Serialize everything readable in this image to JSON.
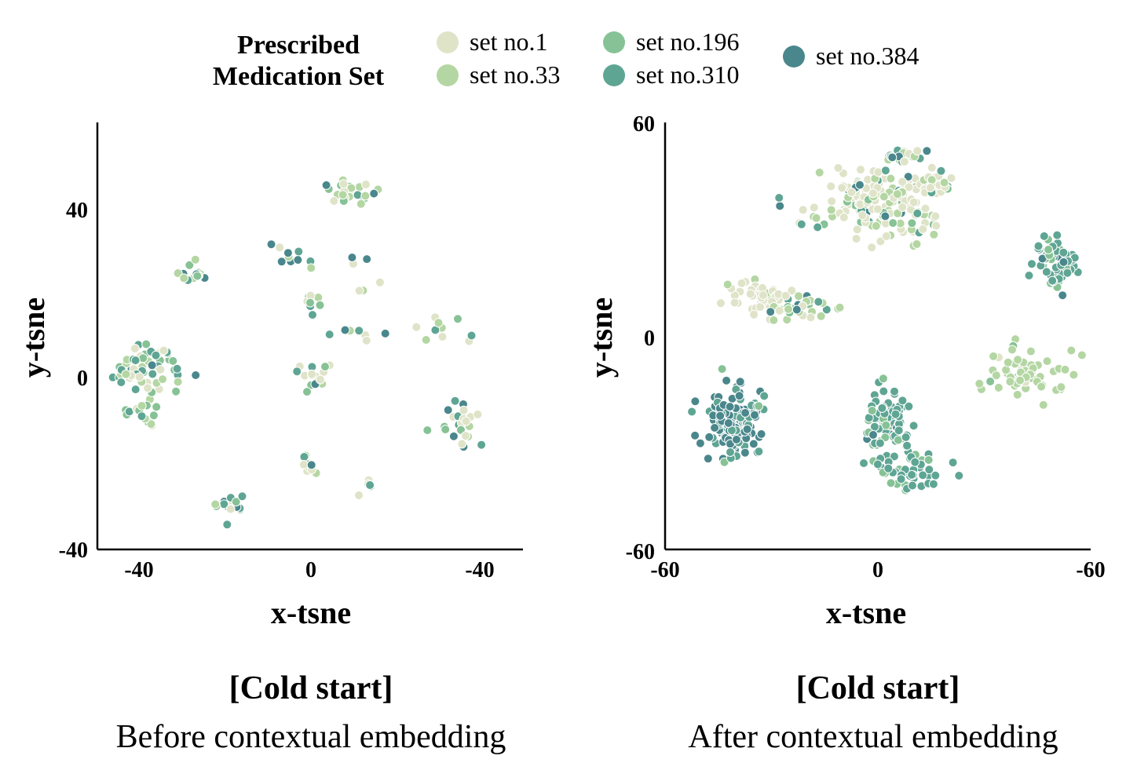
{
  "legend": {
    "title_line1": "Prescribed",
    "title_line2": "Medication Set",
    "items": [
      {
        "label": "set no.1",
        "color": "#dfe3c8"
      },
      {
        "label": "set no.33",
        "color": "#b4d6a3"
      },
      {
        "label": "set no.196",
        "color": "#86c295"
      },
      {
        "label": "set no.310",
        "color": "#5fa594"
      },
      {
        "label": "set no.384",
        "color": "#4a878c"
      }
    ]
  },
  "chart_data": [
    {
      "type": "scatter",
      "title": "[Cold start]",
      "subtitle": "Before contextual embedding",
      "xlabel": "x-tsne",
      "ylabel": "y-tsne",
      "x_ticks": [
        "-40",
        "0",
        "-40"
      ],
      "y_ticks": [
        "40",
        "0",
        "-40"
      ],
      "xlim": [
        -50,
        50
      ],
      "ylim": [
        -40,
        60
      ],
      "clusters": [
        {
          "x": -38,
          "y": 3,
          "spread": [
            4,
            3
          ],
          "n": 60,
          "mix": [
            0.3,
            0.2,
            0.2,
            0.2,
            0.1
          ]
        },
        {
          "x": -39,
          "y": -8,
          "spread": [
            2,
            2
          ],
          "n": 18,
          "mix": [
            0.2,
            0.4,
            0.3,
            0.1,
            0.0
          ]
        },
        {
          "x": -28,
          "y": 25,
          "spread": [
            2,
            1.2
          ],
          "n": 14,
          "mix": [
            0.4,
            0.3,
            0.1,
            0.1,
            0.1
          ]
        },
        {
          "x": 9,
          "y": 44,
          "spread": [
            3,
            2
          ],
          "n": 28,
          "mix": [
            0.3,
            0.3,
            0.2,
            0.1,
            0.1
          ]
        },
        {
          "x": 1,
          "y": 18,
          "spread": [
            1.5,
            1.5
          ],
          "n": 8,
          "mix": [
            0.2,
            0.3,
            0.2,
            0.3,
            0.0
          ]
        },
        {
          "x": 1,
          "y": 1,
          "spread": [
            2.5,
            2
          ],
          "n": 16,
          "mix": [
            0.4,
            0.1,
            0.1,
            0.2,
            0.2
          ]
        },
        {
          "x": 0,
          "y": -20,
          "spread": [
            1,
            1.5
          ],
          "n": 10,
          "mix": [
            0.5,
            0.2,
            0.1,
            0.1,
            0.1
          ]
        },
        {
          "x": -19,
          "y": -29,
          "spread": [
            2,
            2
          ],
          "n": 14,
          "mix": [
            0.2,
            0.2,
            0.2,
            0.3,
            0.1
          ]
        },
        {
          "x": 13,
          "y": -25,
          "spread": [
            1,
            1
          ],
          "n": 6,
          "mix": [
            0.5,
            0.2,
            0.0,
            0.3,
            0.0
          ]
        },
        {
          "x": 35,
          "y": -10,
          "spread": [
            3,
            2.5
          ],
          "n": 24,
          "mix": [
            0.2,
            0.1,
            0.2,
            0.3,
            0.2
          ]
        },
        {
          "x": 12,
          "y": 25,
          "spread": [
            2,
            2
          ],
          "n": 6,
          "mix": [
            0.3,
            0.1,
            0.0,
            0.2,
            0.4
          ]
        },
        {
          "x": -3,
          "y": 28,
          "spread": [
            3,
            2
          ],
          "n": 10,
          "mix": [
            0.2,
            0.1,
            0.1,
            0.2,
            0.4
          ]
        },
        {
          "x": 30,
          "y": 12,
          "spread": [
            3,
            2
          ],
          "n": 10,
          "mix": [
            0.5,
            0.1,
            0.2,
            0.2,
            0.0
          ]
        },
        {
          "x": 10,
          "y": 11,
          "spread": [
            3,
            2
          ],
          "n": 8,
          "mix": [
            0.3,
            0.3,
            0.0,
            0.2,
            0.2
          ]
        }
      ]
    },
    {
      "type": "scatter",
      "title": "[Cold start]",
      "subtitle": "After contextual embedding",
      "xlabel": "x-tsne",
      "ylabel": "y-tsne",
      "x_ticks": [
        "-60",
        "0",
        "-60"
      ],
      "y_ticks": [
        "60",
        "0",
        "-60"
      ],
      "xlim": [
        -60,
        60
      ],
      "ylim": [
        -60,
        60
      ],
      "clusters": [
        {
          "x": -40,
          "y": -25,
          "spread": [
            4,
            4.5
          ],
          "n": 130,
          "mix": [
            0.0,
            0.0,
            0.05,
            0.25,
            0.7
          ]
        },
        {
          "x": 3,
          "y": -24,
          "spread": [
            3.5,
            4
          ],
          "n": 90,
          "mix": [
            0.0,
            0.0,
            0.2,
            0.75,
            0.05
          ]
        },
        {
          "x": 7,
          "y": -38,
          "spread": [
            5,
            3.5
          ],
          "n": 50,
          "mix": [
            0.0,
            0.0,
            0.25,
            0.75,
            0.0
          ]
        },
        {
          "x": 42,
          "y": -11,
          "spread": [
            5,
            3.5
          ],
          "n": 60,
          "mix": [
            0.1,
            0.85,
            0.05,
            0.0,
            0.0
          ]
        },
        {
          "x": 50,
          "y": 21,
          "spread": [
            3,
            3.5
          ],
          "n": 70,
          "mix": [
            0.0,
            0.0,
            0.2,
            0.7,
            0.1
          ]
        },
        {
          "x": -34,
          "y": 11,
          "spread": [
            5,
            2.5
          ],
          "n": 60,
          "mix": [
            0.9,
            0.1,
            0.0,
            0.0,
            0.0
          ]
        },
        {
          "x": -20,
          "y": 8,
          "spread": [
            5,
            2
          ],
          "n": 30,
          "mix": [
            0.2,
            0.3,
            0.2,
            0.2,
            0.1
          ]
        },
        {
          "x": 0,
          "y": 38,
          "spread": [
            10,
            5
          ],
          "n": 180,
          "mix": [
            0.6,
            0.2,
            0.05,
            0.1,
            0.05
          ]
        },
        {
          "x": 17,
          "y": 43,
          "spread": [
            2,
            2
          ],
          "n": 20,
          "mix": [
            0.3,
            0.3,
            0.1,
            0.2,
            0.1
          ]
        },
        {
          "x": 7,
          "y": 51,
          "spread": [
            3,
            1
          ],
          "n": 20,
          "mix": [
            0.2,
            0.2,
            0.1,
            0.1,
            0.4
          ]
        }
      ]
    }
  ]
}
